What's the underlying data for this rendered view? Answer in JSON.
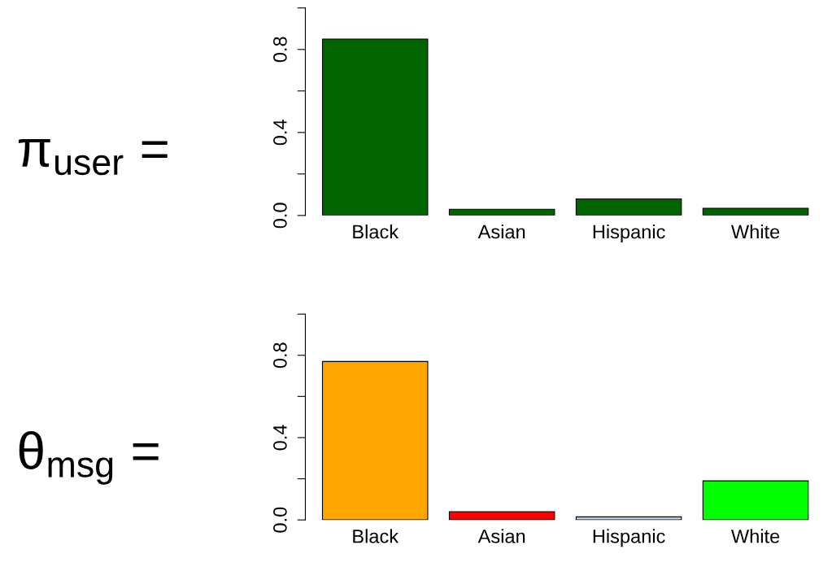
{
  "chart_data": [
    {
      "type": "bar",
      "title": "π$_{user}$ =",
      "categories": [
        "Black",
        "Asian",
        "Hispanic",
        "White"
      ],
      "values": [
        0.85,
        0.03,
        0.08,
        0.035
      ],
      "color": "#006400",
      "ylim": [
        0,
        1.0
      ],
      "yticks": [
        {
          "value": 0,
          "label": "0.0"
        },
        {
          "value": 0.2,
          "label": null
        },
        {
          "value": 0.4,
          "label": "0.4"
        },
        {
          "value": 0.6,
          "label": null
        },
        {
          "value": 0.8,
          "label": "0.8"
        },
        {
          "value": 1.0,
          "label": null
        }
      ],
      "grid": false,
      "legend": false
    },
    {
      "type": "bar",
      "title": "θ$_{msg}$ =",
      "categories": [
        "Black",
        "Asian",
        "Hispanic",
        "White"
      ],
      "values": [
        0.77,
        0.04,
        0.015,
        0.19
      ],
      "colors": [
        "#ffa500",
        "#ff0000",
        "#bfcfe0",
        "#00ff00"
      ],
      "ylim": [
        0,
        1.0
      ],
      "yticks": [
        {
          "value": 0,
          "label": "0.0"
        },
        {
          "value": 0.2,
          "label": null
        },
        {
          "value": 0.4,
          "label": "0.4"
        },
        {
          "value": 0.6,
          "label": null
        },
        {
          "value": 0.8,
          "label": "0.8"
        },
        {
          "value": 1.0,
          "label": null
        }
      ],
      "grid": false,
      "legend": false
    }
  ]
}
